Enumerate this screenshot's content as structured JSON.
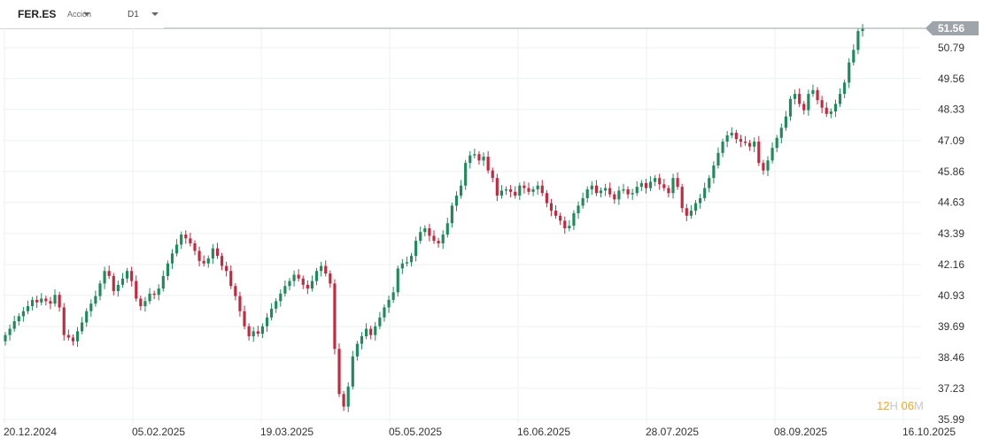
{
  "toolbar": {
    "symbol": "FER.ES",
    "symbol_type": "Acción",
    "timeframe": "D1"
  },
  "countdown": {
    "hours": "12",
    "hour_unit": "H",
    "minutes": "06",
    "minute_unit": "M"
  },
  "colors": {
    "up": "#1f8a5b",
    "down": "#c4283e",
    "grid": "#eef0f2",
    "price_line": "#9aa1a8",
    "price_badge": "#9ea4aa"
  },
  "chart_data": {
    "type": "candlestick",
    "current_price": 51.56,
    "y_ticks": [
      50.79,
      49.56,
      48.33,
      47.09,
      45.86,
      44.63,
      43.39,
      42.16,
      40.93,
      39.69,
      38.46,
      37.23,
      35.99
    ],
    "x_ticks": [
      "20.12.2024",
      "05.02.2025",
      "19.03.2025",
      "05.05.2025",
      "16.06.2025",
      "28.07.2025",
      "08.09.2025",
      "16.10.2025"
    ],
    "ylim": [
      35.99,
      51.56
    ],
    "closes": [
      39.35,
      39.6,
      39.9,
      40.1,
      40.3,
      40.5,
      40.75,
      40.65,
      40.8,
      40.7,
      40.6,
      40.95,
      40.45,
      39.35,
      39.25,
      39.1,
      39.5,
      39.85,
      40.3,
      40.6,
      40.9,
      41.4,
      41.9,
      41.7,
      41.1,
      41.35,
      41.6,
      41.9,
      41.5,
      40.8,
      40.5,
      40.7,
      41.0,
      40.95,
      41.2,
      41.7,
      42.2,
      42.6,
      42.95,
      43.35,
      43.2,
      43.0,
      42.7,
      42.3,
      42.2,
      42.4,
      42.8,
      42.5,
      42.1,
      41.9,
      41.3,
      40.9,
      40.3,
      39.7,
      39.3,
      39.5,
      39.4,
      39.7,
      40.05,
      40.4,
      40.7,
      41.0,
      41.3,
      41.5,
      41.75,
      41.6,
      41.35,
      41.2,
      41.5,
      41.9,
      42.1,
      41.8,
      41.4,
      38.8,
      37.0,
      36.5,
      37.3,
      38.5,
      39.0,
      39.3,
      39.6,
      39.35,
      39.7,
      40.05,
      40.45,
      40.75,
      41.05,
      42.0,
      42.2,
      42.25,
      42.5,
      43.1,
      43.45,
      43.6,
      43.3,
      43.1,
      43.0,
      43.35,
      43.8,
      44.5,
      44.9,
      45.3,
      46.2,
      46.5,
      46.55,
      46.3,
      46.45,
      45.9,
      45.6,
      44.9,
      45.1,
      45.15,
      45.05,
      44.9,
      45.3,
      45.2,
      45.05,
      45.15,
      45.3,
      45.0,
      44.6,
      44.3,
      44.1,
      43.9,
      43.6,
      43.7,
      44.2,
      44.5,
      44.8,
      45.15,
      45.3,
      45.0,
      45.1,
      45.2,
      44.95,
      44.75,
      45.1,
      45.15,
      44.95,
      45.0,
      45.25,
      45.4,
      45.2,
      45.45,
      45.6,
      45.35,
      45.2,
      45.0,
      45.6,
      45.25,
      44.4,
      44.1,
      44.3,
      44.6,
      44.8,
      45.2,
      45.6,
      46.1,
      46.6,
      47.05,
      47.3,
      47.4,
      47.15,
      47.05,
      47.0,
      46.85,
      47.05,
      46.2,
      45.9,
      46.3,
      46.8,
      47.2,
      47.6,
      48.05,
      48.75,
      48.95,
      48.55,
      48.3,
      48.95,
      49.1,
      48.7,
      48.4,
      48.15,
      48.25,
      48.55,
      48.95,
      49.4,
      50.2,
      50.7,
      51.45,
      51.56
    ]
  }
}
